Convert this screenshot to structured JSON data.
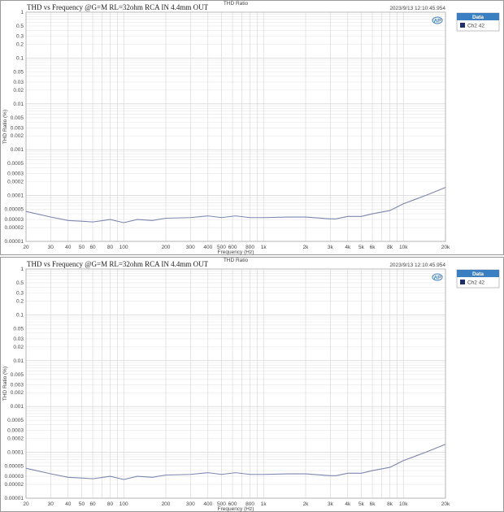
{
  "chart_data": [
    {
      "type": "line",
      "title": "THD vs Frequency @G=M RL=32ohm RCA IN 4.4mm OUT",
      "top_label": "THD Ratio",
      "timestamp": "2023/9/13 12:10:45.954",
      "xlabel": "Frequency (Hz)",
      "ylabel": "THD Ratio (%)",
      "xscale": "log",
      "yscale": "log",
      "xlim": [
        20,
        20000
      ],
      "ylim": [
        1e-05,
        1
      ],
      "grid": true,
      "legend": {
        "title": "Data",
        "placement": "right",
        "entries": [
          "Ch2 42"
        ]
      },
      "xticks": [
        "20",
        "30",
        "40",
        "50",
        "60",
        "80",
        "100",
        "200",
        "300",
        "400",
        "500",
        "600",
        "800",
        "1k",
        "2k",
        "3k",
        "4k",
        "5k",
        "6k",
        "8k",
        "10k",
        "20k"
      ],
      "yticks": [
        "1",
        "0.5",
        "0.3",
        "0.2",
        "0.1",
        "0.05",
        "0.03",
        "0.02",
        "0.01",
        "0.005",
        "0.003",
        "0.002",
        "0.001",
        "0.0005",
        "0.0003",
        "0.0002",
        "0.0001",
        "0.00005",
        "0.00003",
        "0.00002",
        "0.00001"
      ],
      "series": [
        {
          "name": "Ch2 42",
          "color": "#7d86b0",
          "x": [
            20,
            30,
            40,
            50,
            60,
            80,
            100,
            125,
            160,
            200,
            300,
            400,
            500,
            630,
            800,
            1000,
            1500,
            2000,
            3000,
            3300,
            4000,
            5000,
            6000,
            8000,
            10000,
            15000,
            20000
          ],
          "y": [
            4.5e-05,
            3.4e-05,
            2.85e-05,
            2.75e-05,
            2.65e-05,
            3e-05,
            2.56e-05,
            3e-05,
            2.85e-05,
            3.2e-05,
            3.3e-05,
            3.6e-05,
            3.3e-05,
            3.6e-05,
            3.3e-05,
            3.3e-05,
            3.4e-05,
            3.4e-05,
            3.1e-05,
            3.1e-05,
            3.5e-05,
            3.5e-05,
            4e-05,
            4.7e-05,
            6.6e-05,
            0.000105,
            0.00015
          ]
        }
      ]
    },
    {
      "type": "line",
      "title": "THD vs Frequency @G=M RL=32ohm RCA IN 4.4mm OUT",
      "top_label": "THD Ratio",
      "timestamp": "2023/9/13 12:10:45.954",
      "xlabel": "Frequency (Hz)",
      "ylabel": "THD Ratio (%)",
      "xscale": "log",
      "yscale": "log",
      "xlim": [
        20,
        20000
      ],
      "ylim": [
        1e-05,
        1
      ],
      "grid": true,
      "legend": {
        "title": "Data",
        "placement": "right",
        "entries": [
          "Ch2 42"
        ]
      },
      "xticks": [
        "20",
        "30",
        "40",
        "50",
        "60",
        "80",
        "100",
        "200",
        "300",
        "400",
        "500",
        "600",
        "800",
        "1k",
        "2k",
        "3k",
        "4k",
        "5k",
        "6k",
        "8k",
        "10k",
        "20k"
      ],
      "yticks": [
        "1",
        "0.5",
        "0.3",
        "0.2",
        "0.1",
        "0.05",
        "0.03",
        "0.02",
        "0.01",
        "0.005",
        "0.003",
        "0.002",
        "0.001",
        "0.0005",
        "0.0003",
        "0.0002",
        "0.0001",
        "0.00005",
        "0.00003",
        "0.00002",
        "0.00001"
      ],
      "series": [
        {
          "name": "Ch2 42",
          "color": "#7d86b0",
          "x": [
            20,
            30,
            40,
            50,
            60,
            80,
            100,
            125,
            160,
            200,
            300,
            400,
            500,
            630,
            800,
            1000,
            1500,
            2000,
            3000,
            3300,
            4000,
            5000,
            6000,
            8000,
            10000,
            15000,
            20000
          ],
          "y": [
            4.5e-05,
            3.4e-05,
            2.85e-05,
            2.75e-05,
            2.65e-05,
            3e-05,
            2.56e-05,
            3e-05,
            2.85e-05,
            3.2e-05,
            3.3e-05,
            3.6e-05,
            3.3e-05,
            3.6e-05,
            3.3e-05,
            3.3e-05,
            3.4e-05,
            3.4e-05,
            3.1e-05,
            3.1e-05,
            3.5e-05,
            3.5e-05,
            4e-05,
            4.7e-05,
            6.6e-05,
            0.000105,
            0.00015
          ]
        }
      ]
    }
  ],
  "colors": {
    "legend_header": "#3a7fc1",
    "series_swatch": "#1f2f6e"
  }
}
